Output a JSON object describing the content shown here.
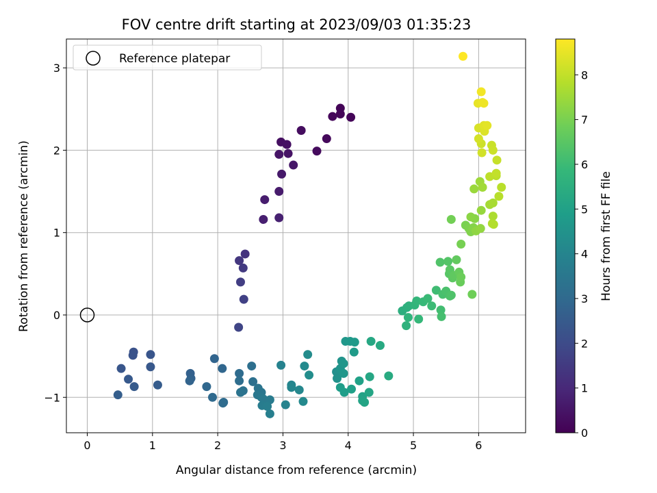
{
  "chart_data": {
    "type": "scatter",
    "title": "FOV centre drift starting at 2023/09/03 01:35:23",
    "xlabel": "Angular distance from reference (arcmin)",
    "ylabel": "Rotation from reference (arcmin)",
    "xlim": [
      -0.32,
      6.72
    ],
    "ylim": [
      -1.43,
      3.35
    ],
    "xticks": [
      0,
      1,
      2,
      3,
      4,
      5,
      6
    ],
    "xtick_labels": [
      "0",
      "1",
      "2",
      "3",
      "4",
      "5",
      "6"
    ],
    "yticks": [
      -1,
      0,
      1,
      2,
      3
    ],
    "ytick_labels": [
      "−1",
      "0",
      "1",
      "2",
      "3"
    ],
    "grid": true,
    "legend": {
      "position": "top-left",
      "entries": [
        {
          "label": "Reference platepar",
          "marker": "open-circle",
          "color": "#000000"
        }
      ]
    },
    "reference_point": {
      "x": 0,
      "y": 0
    },
    "colorbar": {
      "label": "Hours from first FF file",
      "range": [
        0,
        8.8
      ],
      "ticks": [
        0,
        1,
        2,
        3,
        4,
        5,
        6,
        7,
        8
      ],
      "tick_labels": [
        "0",
        "1",
        "2",
        "3",
        "4",
        "5",
        "6",
        "7",
        "8"
      ],
      "colormap": "viridis",
      "colormap_stops": [
        "#440154",
        "#482878",
        "#3e4a89",
        "#31688e",
        "#26828e",
        "#1f9e89",
        "#35b779",
        "#6ece58",
        "#b5de2b",
        "#fde725"
      ]
    },
    "series": [
      {
        "marker": "filled-circle",
        "points": [
          [
            3.88,
            2.51,
            0.08
          ],
          [
            3.88,
            2.44,
            0.12
          ],
          [
            3.76,
            2.41,
            0.15
          ],
          [
            4.04,
            2.4,
            0.1
          ],
          [
            3.67,
            2.14,
            0.2
          ],
          [
            3.52,
            1.99,
            0.25
          ],
          [
            3.28,
            2.24,
            0.3
          ],
          [
            2.97,
            2.1,
            0.35
          ],
          [
            3.06,
            2.07,
            0.4
          ],
          [
            3.08,
            1.96,
            0.45
          ],
          [
            2.94,
            1.95,
            0.5
          ],
          [
            3.16,
            1.82,
            0.55
          ],
          [
            2.98,
            1.71,
            0.6
          ],
          [
            2.94,
            1.5,
            0.65
          ],
          [
            2.72,
            1.4,
            0.7
          ],
          [
            2.7,
            1.16,
            0.75
          ],
          [
            2.94,
            1.18,
            0.8
          ],
          [
            2.42,
            0.74,
            1.3
          ],
          [
            2.33,
            0.66,
            1.4
          ],
          [
            2.39,
            0.57,
            1.5
          ],
          [
            2.35,
            0.4,
            1.6
          ],
          [
            2.4,
            0.19,
            1.7
          ],
          [
            2.32,
            -0.15,
            1.8
          ],
          [
            0.71,
            -0.45,
            2.2
          ],
          [
            0.7,
            -0.49,
            2.25
          ],
          [
            0.97,
            -0.48,
            2.3
          ],
          [
            0.52,
            -0.65,
            2.35
          ],
          [
            0.97,
            -0.63,
            2.4
          ],
          [
            0.63,
            -0.78,
            2.45
          ],
          [
            0.72,
            -0.87,
            2.5
          ],
          [
            1.08,
            -0.85,
            2.55
          ],
          [
            0.47,
            -0.97,
            2.6
          ],
          [
            1.58,
            -0.71,
            2.7
          ],
          [
            1.59,
            -0.77,
            2.75
          ],
          [
            1.57,
            -0.8,
            2.8
          ],
          [
            1.95,
            -0.53,
            2.85
          ],
          [
            2.07,
            -0.65,
            2.9
          ],
          [
            1.83,
            -0.87,
            2.95
          ],
          [
            1.92,
            -1.0,
            3.0
          ],
          [
            2.09,
            -1.06,
            3.05
          ],
          [
            2.08,
            -1.07,
            3.08
          ],
          [
            2.33,
            -0.71,
            3.1
          ],
          [
            2.33,
            -0.8,
            3.15
          ],
          [
            2.52,
            -0.62,
            3.2
          ],
          [
            2.54,
            -0.81,
            3.25
          ],
          [
            2.39,
            -0.92,
            3.3
          ],
          [
            2.35,
            -0.94,
            3.35
          ],
          [
            2.62,
            -0.89,
            3.4
          ],
          [
            2.67,
            -0.94,
            3.45
          ],
          [
            2.61,
            -0.97,
            3.5
          ],
          [
            2.67,
            -1.0,
            3.55
          ],
          [
            2.7,
            -1.02,
            3.6
          ],
          [
            2.8,
            -1.03,
            3.65
          ],
          [
            2.68,
            -1.1,
            3.7
          ],
          [
            2.76,
            -1.11,
            3.75
          ],
          [
            2.8,
            -1.2,
            3.8
          ],
          [
            2.97,
            -0.61,
            3.9
          ],
          [
            3.04,
            -1.09,
            3.95
          ],
          [
            3.13,
            -0.85,
            4.0
          ],
          [
            3.13,
            -0.88,
            4.05
          ],
          [
            3.25,
            -0.91,
            4.1
          ],
          [
            3.31,
            -1.05,
            4.15
          ],
          [
            3.33,
            -0.62,
            4.2
          ],
          [
            3.38,
            -0.48,
            4.25
          ],
          [
            3.4,
            -0.73,
            4.3
          ],
          [
            3.82,
            -0.69,
            4.35
          ],
          [
            3.84,
            -0.71,
            4.4
          ],
          [
            3.83,
            -0.77,
            4.45
          ],
          [
            3.9,
            -0.56,
            4.5
          ],
          [
            3.88,
            -0.65,
            4.55
          ],
          [
            3.93,
            -0.71,
            4.6
          ],
          [
            3.93,
            -0.59,
            4.62
          ],
          [
            3.96,
            -0.32,
            4.65
          ],
          [
            4.03,
            -0.32,
            4.7
          ],
          [
            4.1,
            -0.33,
            4.75
          ],
          [
            4.09,
            -0.45,
            4.8
          ],
          [
            3.88,
            -0.88,
            4.85
          ],
          [
            3.94,
            -0.94,
            4.9
          ],
          [
            4.05,
            -0.9,
            4.95
          ],
          [
            4.17,
            -0.8,
            5.0
          ],
          [
            4.22,
            -0.99,
            5.05
          ],
          [
            4.22,
            -1.04,
            5.1
          ],
          [
            4.25,
            -1.06,
            5.12
          ],
          [
            4.32,
            -0.94,
            5.15
          ],
          [
            4.33,
            -0.75,
            5.2
          ],
          [
            4.35,
            -0.32,
            5.25
          ],
          [
            4.49,
            -0.37,
            5.3
          ],
          [
            4.62,
            -0.74,
            5.35
          ],
          [
            4.83,
            0.05,
            5.5
          ],
          [
            4.9,
            0.09,
            5.55
          ],
          [
            4.93,
            0.11,
            5.6
          ],
          [
            4.89,
            -0.13,
            5.65
          ],
          [
            4.92,
            -0.03,
            5.7
          ],
          [
            5.02,
            0.12,
            5.75
          ],
          [
            5.05,
            0.17,
            5.8
          ],
          [
            5.08,
            -0.05,
            5.85
          ],
          [
            5.15,
            0.16,
            5.9
          ],
          [
            5.22,
            0.2,
            5.95
          ],
          [
            5.28,
            0.11,
            6.0
          ],
          [
            5.35,
            0.3,
            6.05
          ],
          [
            5.42,
            0.06,
            6.1
          ],
          [
            5.43,
            -0.02,
            6.15
          ],
          [
            5.45,
            0.25,
            6.2
          ],
          [
            5.5,
            0.29,
            6.25
          ],
          [
            5.56,
            0.23,
            6.3
          ],
          [
            5.58,
            0.24,
            6.32
          ],
          [
            5.41,
            0.64,
            6.35
          ],
          [
            5.53,
            0.65,
            6.4
          ],
          [
            5.55,
            0.5,
            6.45
          ],
          [
            5.56,
            0.55,
            6.5
          ],
          [
            5.6,
            0.45,
            6.55
          ],
          [
            5.62,
            0.48,
            6.6
          ],
          [
            5.66,
            0.67,
            6.65
          ],
          [
            5.7,
            0.52,
            6.7
          ],
          [
            5.72,
            0.4,
            6.75
          ],
          [
            5.73,
            0.46,
            6.8
          ],
          [
            5.9,
            0.25,
            6.85
          ],
          [
            5.58,
            1.16,
            6.9
          ],
          [
            5.73,
            0.86,
            6.95
          ],
          [
            5.8,
            1.09,
            7.0
          ],
          [
            5.85,
            1.05,
            7.05
          ],
          [
            5.88,
            1.01,
            7.1
          ],
          [
            5.92,
            1.06,
            7.15
          ],
          [
            5.94,
            1.17,
            7.2
          ],
          [
            5.88,
            1.19,
            7.25
          ],
          [
            5.96,
            1.02,
            7.3
          ],
          [
            6.03,
            1.05,
            7.35
          ],
          [
            6.04,
            1.27,
            7.4
          ],
          [
            5.93,
            1.53,
            7.45
          ],
          [
            6.02,
            1.62,
            7.5
          ],
          [
            6.06,
            1.55,
            7.55
          ],
          [
            6.17,
            1.34,
            7.6
          ],
          [
            6.22,
            1.36,
            7.65
          ],
          [
            6.22,
            1.2,
            7.7
          ],
          [
            6.21,
            1.11,
            7.75
          ],
          [
            6.23,
            1.1,
            7.8
          ],
          [
            6.31,
            1.44,
            7.85
          ],
          [
            6.35,
            1.55,
            7.88
          ],
          [
            6.27,
            1.69,
            7.9
          ],
          [
            6.17,
            1.68,
            7.95
          ],
          [
            6.27,
            1.72,
            8.0
          ],
          [
            6.28,
            1.88,
            8.05
          ],
          [
            6.2,
            2.06,
            8.1
          ],
          [
            6.22,
            2.0,
            8.12
          ],
          [
            6.04,
            2.08,
            8.15
          ],
          [
            6.05,
            1.97,
            8.2
          ],
          [
            6.0,
            2.14,
            8.25
          ],
          [
            6.0,
            2.27,
            8.3
          ],
          [
            6.09,
            2.23,
            8.35
          ],
          [
            6.08,
            2.3,
            8.4
          ],
          [
            6.13,
            2.3,
            8.45
          ],
          [
            5.99,
            2.57,
            8.5
          ],
          [
            6.06,
            2.58,
            8.55
          ],
          [
            6.08,
            2.57,
            8.6
          ],
          [
            6.04,
            2.71,
            8.65
          ],
          [
            5.76,
            3.14,
            8.8
          ]
        ]
      }
    ]
  }
}
